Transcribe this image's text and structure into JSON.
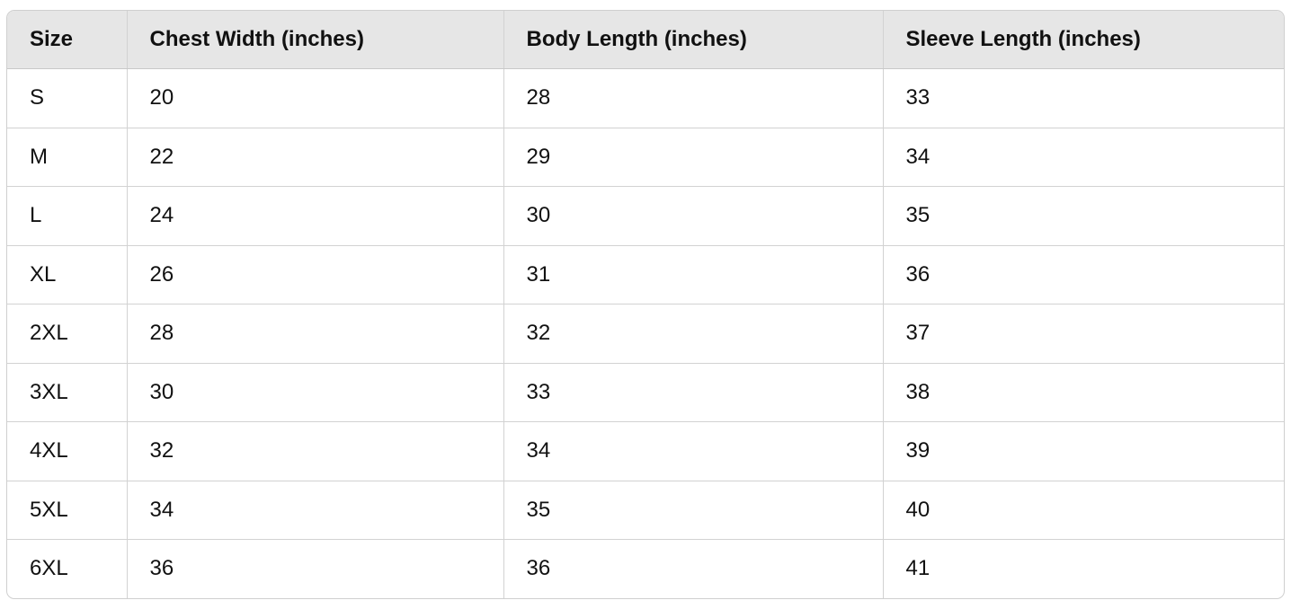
{
  "table": {
    "headers": [
      "Size",
      "Chest Width (inches)",
      "Body Length (inches)",
      "Sleeve Length (inches)"
    ],
    "rows": [
      [
        "S",
        "20",
        "28",
        "33"
      ],
      [
        "M",
        "22",
        "29",
        "34"
      ],
      [
        "L",
        "24",
        "30",
        "35"
      ],
      [
        "XL",
        "26",
        "31",
        "36"
      ],
      [
        "2XL",
        "28",
        "32",
        "37"
      ],
      [
        "3XL",
        "30",
        "33",
        "38"
      ],
      [
        "4XL",
        "32",
        "34",
        "39"
      ],
      [
        "5XL",
        "34",
        "35",
        "40"
      ],
      [
        "6XL",
        "36",
        "36",
        "41"
      ]
    ]
  }
}
